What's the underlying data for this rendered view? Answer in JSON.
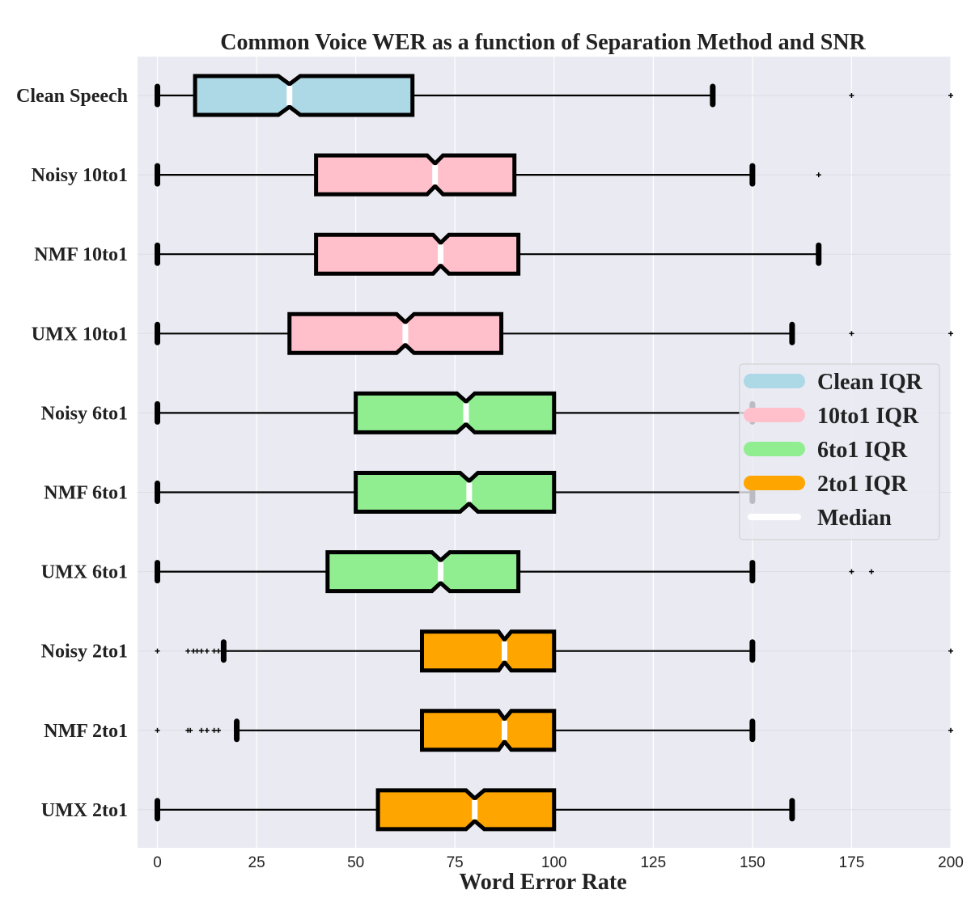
{
  "chart_data": {
    "type": "box",
    "title": "Common Voice WER as a function of Separation Method and SNR",
    "xlabel": "Word Error Rate",
    "ylabel": "",
    "xlim": [
      -5,
      200
    ],
    "xticks": [
      0,
      25,
      50,
      75,
      100,
      125,
      150,
      175,
      200
    ],
    "grid": true,
    "notched": true,
    "colors": {
      "background": "#eaeaf2",
      "grid": "#ffffff",
      "clean": "#add8e6",
      "10to1": "#ffc0cb",
      "6to1": "#90ee90",
      "2to1": "#ffa500",
      "median": "#ffffff",
      "outline": "#000000"
    },
    "categories": [
      "Clean Speech",
      "Noisy 10to1",
      "NMF 10to1",
      "UMX 10to1",
      "Noisy 6to1",
      "NMF 6to1",
      "UMX 6to1",
      "Noisy 2to1",
      "NMF 2to1",
      "UMX 2to1"
    ],
    "boxes": [
      {
        "label": "Clean Speech",
        "group": "clean",
        "whislo": 0,
        "q1": 9.5,
        "med": 33.3,
        "q3": 64.3,
        "whishi": 140,
        "notch": [
          30.5,
          36.0
        ],
        "fliers": [
          175,
          200
        ]
      },
      {
        "label": "Noisy 10to1",
        "group": "10to1",
        "whislo": 0,
        "q1": 40,
        "med": 70,
        "q3": 90,
        "whishi": 150,
        "notch": [
          68,
          72
        ],
        "fliers": [
          166.7
        ]
      },
      {
        "label": "NMF 10to1",
        "group": "10to1",
        "whislo": 0,
        "q1": 40,
        "med": 71.4,
        "q3": 91,
        "whishi": 166.7,
        "notch": [
          69.5,
          73.5
        ],
        "fliers": []
      },
      {
        "label": "UMX 10to1",
        "group": "10to1",
        "whislo": 0,
        "q1": 33.3,
        "med": 62.5,
        "q3": 86.7,
        "whishi": 160,
        "notch": [
          60.3,
          64.7
        ],
        "fliers": [
          175,
          200
        ]
      },
      {
        "label": "Noisy 6to1",
        "group": "6to1",
        "whislo": 0,
        "q1": 50,
        "med": 77.8,
        "q3": 100,
        "whishi": 150,
        "notch": [
          75.5,
          80.0
        ],
        "fliers": []
      },
      {
        "label": "NMF 6to1",
        "group": "6to1",
        "whislo": 0,
        "q1": 50,
        "med": 78.6,
        "q3": 100,
        "whishi": 150,
        "notch": [
          76.3,
          80.8
        ],
        "fliers": []
      },
      {
        "label": "UMX 6to1",
        "group": "6to1",
        "whislo": 0,
        "q1": 42.9,
        "med": 71.4,
        "q3": 91,
        "whishi": 150,
        "notch": [
          69.2,
          73.7
        ],
        "fliers": [
          175,
          180
        ]
      },
      {
        "label": "Noisy 2to1",
        "group": "2to1",
        "whislo": 16.7,
        "q1": 66.7,
        "med": 87.5,
        "q3": 100,
        "whishi": 150,
        "notch": [
          86.0,
          89.2
        ],
        "fliers": [
          0,
          7.7,
          9.1,
          10,
          11.1,
          12.5,
          14.3,
          15.4,
          200
        ]
      },
      {
        "label": "NMF 2to1",
        "group": "2to1",
        "whislo": 20,
        "q1": 66.7,
        "med": 87.5,
        "q3": 100,
        "whishi": 150,
        "notch": [
          86.0,
          89.2
        ],
        "fliers": [
          0,
          7.7,
          8.3,
          11.1,
          12.5,
          14.3,
          15.4,
          200
        ]
      },
      {
        "label": "UMX 2to1",
        "group": "2to1",
        "whislo": 0,
        "q1": 55.6,
        "med": 80,
        "q3": 100,
        "whishi": 160,
        "notch": [
          77.8,
          82.4
        ],
        "fliers": []
      }
    ],
    "legend": {
      "placement": "center-right",
      "entries": [
        {
          "label": "Clean IQR",
          "color": "#add8e6"
        },
        {
          "label": "10to1 IQR",
          "color": "#ffc0cb"
        },
        {
          "label": "6to1 IQR",
          "color": "#90ee90"
        },
        {
          "label": "2to1 IQR",
          "color": "#ffa500"
        },
        {
          "label": "Median",
          "color": "#ffffff"
        }
      ]
    }
  }
}
